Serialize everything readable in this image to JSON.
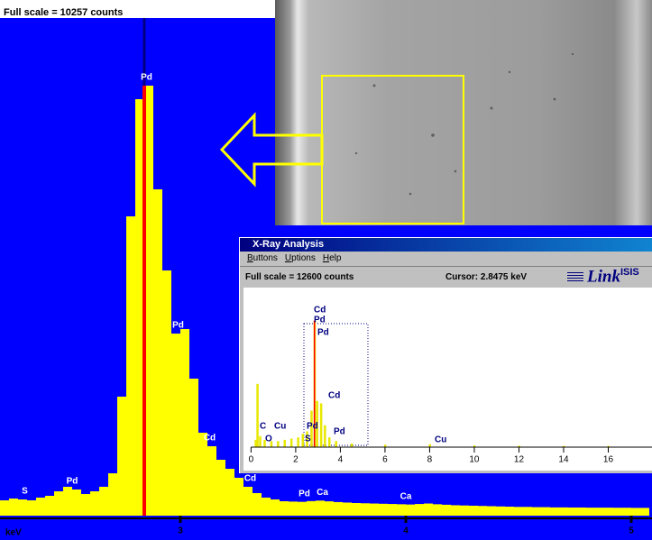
{
  "main_header": "Full scale = 10257  counts",
  "main_spectrum": {
    "type": "histogram",
    "x_label": "keV",
    "xlim": [
      2.2,
      5.092
    ],
    "ylim": [
      0,
      10257
    ],
    "xticks": [
      3,
      4,
      5
    ],
    "peak_marker": 2.84,
    "color": "#ffff00",
    "bins": [
      2.2,
      2.24,
      2.28,
      2.32,
      2.36,
      2.4,
      2.44,
      2.48,
      2.52,
      2.56,
      2.6,
      2.64,
      2.68,
      2.72,
      2.76,
      2.8,
      2.84,
      2.88,
      2.92,
      2.96,
      3,
      3.04,
      3.08,
      3.12,
      3.16,
      3.2,
      3.24,
      3.28,
      3.32,
      3.36,
      3.4,
      3.44,
      3.48,
      3.52,
      3.56,
      3.6,
      3.64,
      3.68,
      3.72,
      3.76,
      3.8,
      3.84,
      3.88,
      3.92,
      3.96,
      4,
      4.04,
      4.08,
      4.12,
      4.16,
      4.2,
      4.24,
      4.28,
      4.32,
      4.36,
      4.4,
      4.44,
      4.48,
      4.52,
      4.56,
      4.6,
      4.64,
      4.68,
      4.72,
      4.76,
      4.8,
      4.84,
      4.88,
      4.92,
      4.96,
      5,
      5.04,
      5.08
    ],
    "values": [
      316,
      353,
      334,
      316,
      372,
      409,
      502,
      595,
      539,
      446,
      502,
      595,
      873,
      2453,
      6169,
      8584,
      8863,
      6726,
      5054,
      3753,
      3846,
      2824,
      1709,
      1431,
      1152,
      966,
      780,
      595,
      465,
      372,
      334,
      297,
      290,
      285,
      300,
      310,
      295,
      280,
      270,
      260,
      255,
      250,
      245,
      240,
      235,
      230,
      240,
      250,
      235,
      225,
      215,
      210,
      205,
      200,
      195,
      190,
      185,
      180,
      180,
      175,
      175,
      170,
      170,
      168,
      168,
      165,
      165,
      165,
      163,
      163,
      160,
      160
    ],
    "annotations": [
      {
        "text": "S",
        "kev": 2.31
      },
      {
        "text": "Pd",
        "kev": 2.52
      },
      {
        "text": "Pd",
        "kev": 2.85
      },
      {
        "text": "Pd",
        "kev": 2.99
      },
      {
        "text": "Cd",
        "kev": 3.13
      },
      {
        "text": "Cd",
        "kev": 3.31
      },
      {
        "text": "Pd",
        "kev": 3.55
      },
      {
        "text": "Ca",
        "kev": 3.63
      },
      {
        "text": "Ca",
        "kev": 4.0
      }
    ]
  },
  "inset": {
    "title": "X-Ray Analysis",
    "menu": [
      "Buttons",
      "Uptions",
      "Help"
    ],
    "full_scale": "Full scale = 12600  counts",
    "cursor": "Cursor:  2.8475 keV",
    "logo": "Link",
    "logo_sup": "ISIS",
    "spectrum": {
      "type": "bar",
      "xlim": [
        -0.5,
        18
      ],
      "ylim": [
        0,
        12600
      ],
      "xticks": [
        0,
        2,
        4,
        6,
        8,
        10,
        12,
        14,
        16
      ],
      "peak_marker": 2.84,
      "color": "#e8e800",
      "x": [
        0.2,
        0.28,
        0.4,
        0.6,
        0.9,
        1.2,
        1.5,
        1.8,
        2.1,
        2.31,
        2.5,
        2.7,
        2.84,
        2.95,
        3.13,
        3.3,
        3.5,
        3.8,
        4.5,
        6,
        8,
        10,
        12,
        14,
        16
      ],
      "values": [
        600,
        5200,
        900,
        600,
        500,
        500,
        600,
        700,
        800,
        1100,
        1300,
        3000,
        10400,
        3800,
        3600,
        1800,
        800,
        500,
        300,
        200,
        250,
        150,
        120,
        100,
        100
      ],
      "labels": [
        "Cd",
        "Pd",
        "Pd",
        "Cd",
        "C",
        "Cu",
        "O",
        "Pd",
        "S",
        "Pd",
        "Cu"
      ]
    }
  }
}
